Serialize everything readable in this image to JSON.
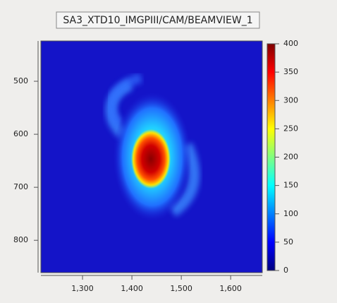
{
  "chart_data": {
    "type": "image",
    "title": "SA3_XTD10_IMGPIII/CAM/BEAMVIEW_1",
    "xlim": [
      1215.7,
      1664
    ],
    "xticks": [
      {
        "value": 1300,
        "label": "1,300"
      },
      {
        "value": 1400,
        "label": "1,400"
      },
      {
        "value": 1500,
        "label": "1,500"
      },
      {
        "value": 1600,
        "label": "1,600"
      }
    ],
    "ylim": [
      424,
      861
    ],
    "y_inverted": true,
    "yticks": [
      500,
      600,
      700,
      800
    ],
    "clim": [
      0,
      400
    ],
    "cticks": [
      0,
      50,
      100,
      150,
      200,
      250,
      300,
      350,
      400
    ],
    "colormap": [
      "#00007f",
      "#0000ff",
      "#0080ff",
      "#00ffff",
      "#80ff80",
      "#ffff00",
      "#ff8000",
      "#ff0000",
      "#7f0000"
    ]
  }
}
